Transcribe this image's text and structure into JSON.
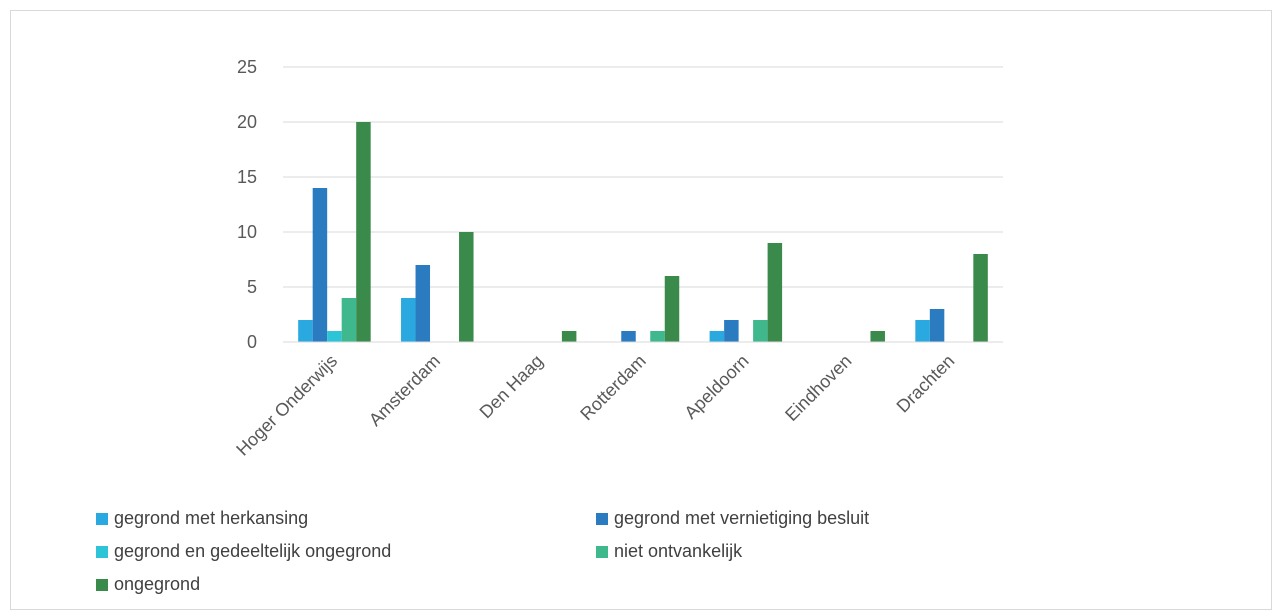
{
  "chart_data": {
    "type": "bar",
    "title": "",
    "xlabel": "",
    "ylabel": "",
    "categories": [
      "Hoger Onderwijs",
      "Amsterdam",
      "Den Haag",
      "Rotterdam",
      "Apeldoorn",
      "Eindhoven",
      "Drachten"
    ],
    "series": [
      {
        "name": "gegrond met herkansing",
        "color": "#29a9e0",
        "values": [
          2,
          4,
          0,
          0,
          1,
          0,
          2
        ]
      },
      {
        "name": "gegrond met vernietiging besluit",
        "color": "#2b7bc1",
        "values": [
          14,
          7,
          0,
          1,
          2,
          0,
          3
        ]
      },
      {
        "name": "gegrond en gedeeltelijk ongegrond",
        "color": "#2dc4d8",
        "values": [
          1,
          0,
          0,
          0,
          0,
          0,
          0
        ]
      },
      {
        "name": "niet ontvankelijk",
        "color": "#3fb88e",
        "values": [
          4,
          0,
          0,
          1,
          2,
          0,
          0
        ]
      },
      {
        "name": "ongegrond",
        "color": "#3a8a4c",
        "values": [
          20,
          10,
          1,
          6,
          9,
          1,
          8
        ]
      }
    ],
    "ylim": [
      0,
      25
    ],
    "yticks": [
      0,
      5,
      10,
      15,
      20,
      25
    ],
    "grid": true,
    "legend_position": "bottom"
  }
}
